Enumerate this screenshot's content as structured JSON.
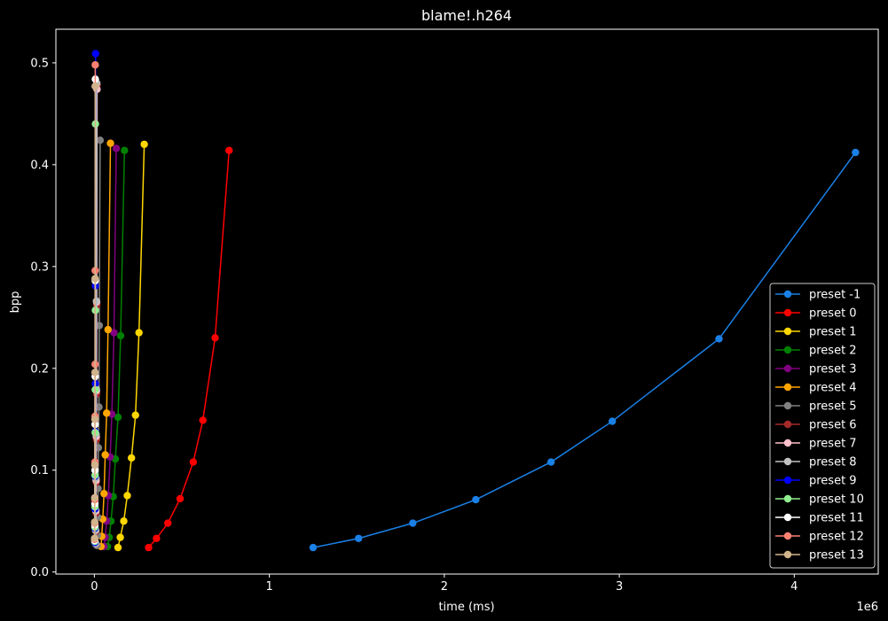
{
  "chart_data": {
    "type": "line",
    "title": "blame!.h264",
    "xlabel": "time (ms)",
    "ylabel": "bpp",
    "x_offset_label": "1e6",
    "x_scale": 1000000,
    "xlim": [
      -220000,
      4480000
    ],
    "ylim": [
      -0.002,
      0.533
    ],
    "xticks": [
      0,
      1000000,
      2000000,
      3000000,
      4000000
    ],
    "xtick_labels": [
      "0",
      "1",
      "2",
      "3",
      "4"
    ],
    "yticks": [
      0.0,
      0.1,
      0.2,
      0.3,
      0.4,
      0.5
    ],
    "ytick_labels": [
      "0.0",
      "0.1",
      "0.2",
      "0.3",
      "0.4",
      "0.5"
    ],
    "grid": false,
    "legend_position": "lower-right",
    "background": "#000000",
    "series": [
      {
        "name": "preset -1",
        "color": "#1a80e6",
        "x": [
          1250000,
          1510000,
          1820000,
          2180000,
          2610000,
          2960000,
          3570000,
          4350000
        ],
        "y": [
          0.024,
          0.033,
          0.048,
          0.071,
          0.108,
          0.148,
          0.229,
          0.412
        ]
      },
      {
        "name": "preset 0",
        "color": "#ff0000",
        "x": [
          310000,
          355000,
          420000,
          490000,
          565000,
          620000,
          690000,
          770000
        ],
        "y": [
          0.024,
          0.033,
          0.048,
          0.072,
          0.108,
          0.149,
          0.23,
          0.414
        ]
      },
      {
        "name": "preset 1",
        "color": "#ffd700",
        "x": [
          135000,
          148000,
          168000,
          188000,
          212000,
          235000,
          255000,
          285000
        ],
        "y": [
          0.024,
          0.034,
          0.05,
          0.075,
          0.112,
          0.154,
          0.235,
          0.42
        ]
      },
      {
        "name": "preset 2",
        "color": "#008000",
        "x": [
          75000,
          85000,
          95000,
          108000,
          120000,
          135000,
          150000,
          172000
        ],
        "y": [
          0.025,
          0.034,
          0.05,
          0.074,
          0.111,
          0.152,
          0.232,
          0.414
        ]
      },
      {
        "name": "preset 3",
        "color": "#800080",
        "x": [
          55000,
          62000,
          70000,
          80000,
          90000,
          100000,
          112000,
          125000
        ],
        "y": [
          0.025,
          0.034,
          0.05,
          0.075,
          0.113,
          0.155,
          0.235,
          0.416
        ]
      },
      {
        "name": "preset 4",
        "color": "#ffa500",
        "x": [
          38000,
          42000,
          48000,
          55000,
          62000,
          70000,
          78000,
          92000
        ],
        "y": [
          0.025,
          0.035,
          0.052,
          0.077,
          0.115,
          0.156,
          0.238,
          0.421
        ]
      },
      {
        "name": "preset 5",
        "color": "#808080",
        "x": [
          15000,
          17000,
          19000,
          21000,
          23000,
          26000,
          28000,
          33000
        ],
        "y": [
          0.026,
          0.036,
          0.054,
          0.082,
          0.122,
          0.162,
          0.242,
          0.424
        ]
      },
      {
        "name": "preset 6",
        "color": "#a52a2a",
        "x": [
          8000,
          9000,
          10000,
          11000,
          12000,
          13000,
          14000,
          16000
        ],
        "y": [
          0.028,
          0.04,
          0.058,
          0.088,
          0.13,
          0.175,
          0.262,
          0.478
        ]
      },
      {
        "name": "preset 7",
        "color": "#ffc0cb",
        "x": [
          7000,
          8000,
          9000,
          10000,
          11000,
          12000,
          13000,
          15000
        ],
        "y": [
          0.028,
          0.041,
          0.06,
          0.09,
          0.133,
          0.178,
          0.265,
          0.474
        ]
      },
      {
        "name": "preset 8",
        "color": "#c0c0c0",
        "x": [
          6000,
          7000,
          8000,
          9000,
          10000,
          11000,
          12000,
          14000
        ],
        "y": [
          0.028,
          0.041,
          0.061,
          0.092,
          0.135,
          0.18,
          0.266,
          0.48
        ]
      },
      {
        "name": "preset 9",
        "color": "#0000ff",
        "x": [
          3000,
          3500,
          4000,
          4500,
          5000,
          5500,
          6000,
          7000
        ],
        "y": [
          0.029,
          0.043,
          0.062,
          0.094,
          0.138,
          0.185,
          0.281,
          0.509
        ]
      },
      {
        "name": "preset 10",
        "color": "#90ee90",
        "x": [
          2500,
          3000,
          3500,
          4000,
          4500,
          5000,
          5500,
          6000
        ],
        "y": [
          0.03,
          0.044,
          0.064,
          0.095,
          0.137,
          0.179,
          0.257,
          0.44
        ]
      },
      {
        "name": "preset 11",
        "color": "#ffffff",
        "x": [
          2000,
          2500,
          3000,
          3500,
          4000,
          4500,
          5000,
          5500
        ],
        "y": [
          0.031,
          0.046,
          0.067,
          0.1,
          0.145,
          0.192,
          0.286,
          0.484
        ]
      },
      {
        "name": "preset 12",
        "color": "#fa8072",
        "x": [
          1500,
          2000,
          2500,
          3000,
          3500,
          4000,
          4500,
          5000
        ],
        "y": [
          0.032,
          0.048,
          0.071,
          0.108,
          0.153,
          0.204,
          0.296,
          0.498
        ]
      },
      {
        "name": "preset 13",
        "color": "#d2b48c",
        "x": [
          1000,
          1500,
          2000,
          2500,
          3000,
          3500,
          4000,
          4500
        ],
        "y": [
          0.033,
          0.049,
          0.073,
          0.105,
          0.15,
          0.196,
          0.288,
          0.477
        ]
      }
    ]
  }
}
